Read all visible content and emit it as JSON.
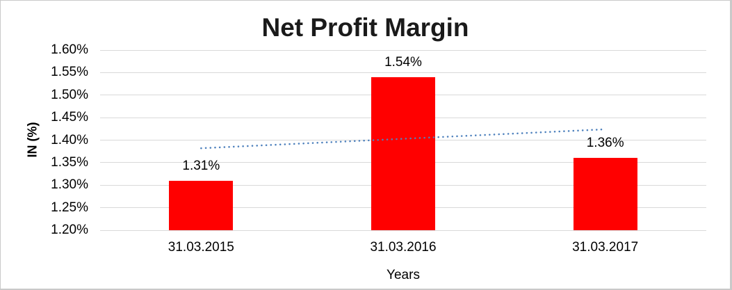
{
  "chart_data": {
    "type": "bar",
    "title": "Net Profit Margin",
    "xlabel": "Years",
    "ylabel": "IN (%)",
    "categories": [
      "31.03.2015",
      "31.03.2016",
      "31.03.2017"
    ],
    "values": [
      1.31,
      1.54,
      1.36
    ],
    "data_labels": [
      "1.31%",
      "1.54%",
      "1.36%"
    ],
    "ylim": [
      1.2,
      1.6
    ],
    "ytick_step": 0.05,
    "ytick_labels": [
      "1.20%",
      "1.25%",
      "1.30%",
      "1.35%",
      "1.40%",
      "1.45%",
      "1.50%",
      "1.55%",
      "1.60%"
    ],
    "grid": true,
    "legend": "none",
    "bar_color": "#FF0000",
    "gridline_color": "#D9D9D9",
    "text_color": "#000000",
    "trendline": {
      "style": "dotted",
      "color": "#4E81BD",
      "start_value": 1.382,
      "end_value": 1.424
    }
  }
}
